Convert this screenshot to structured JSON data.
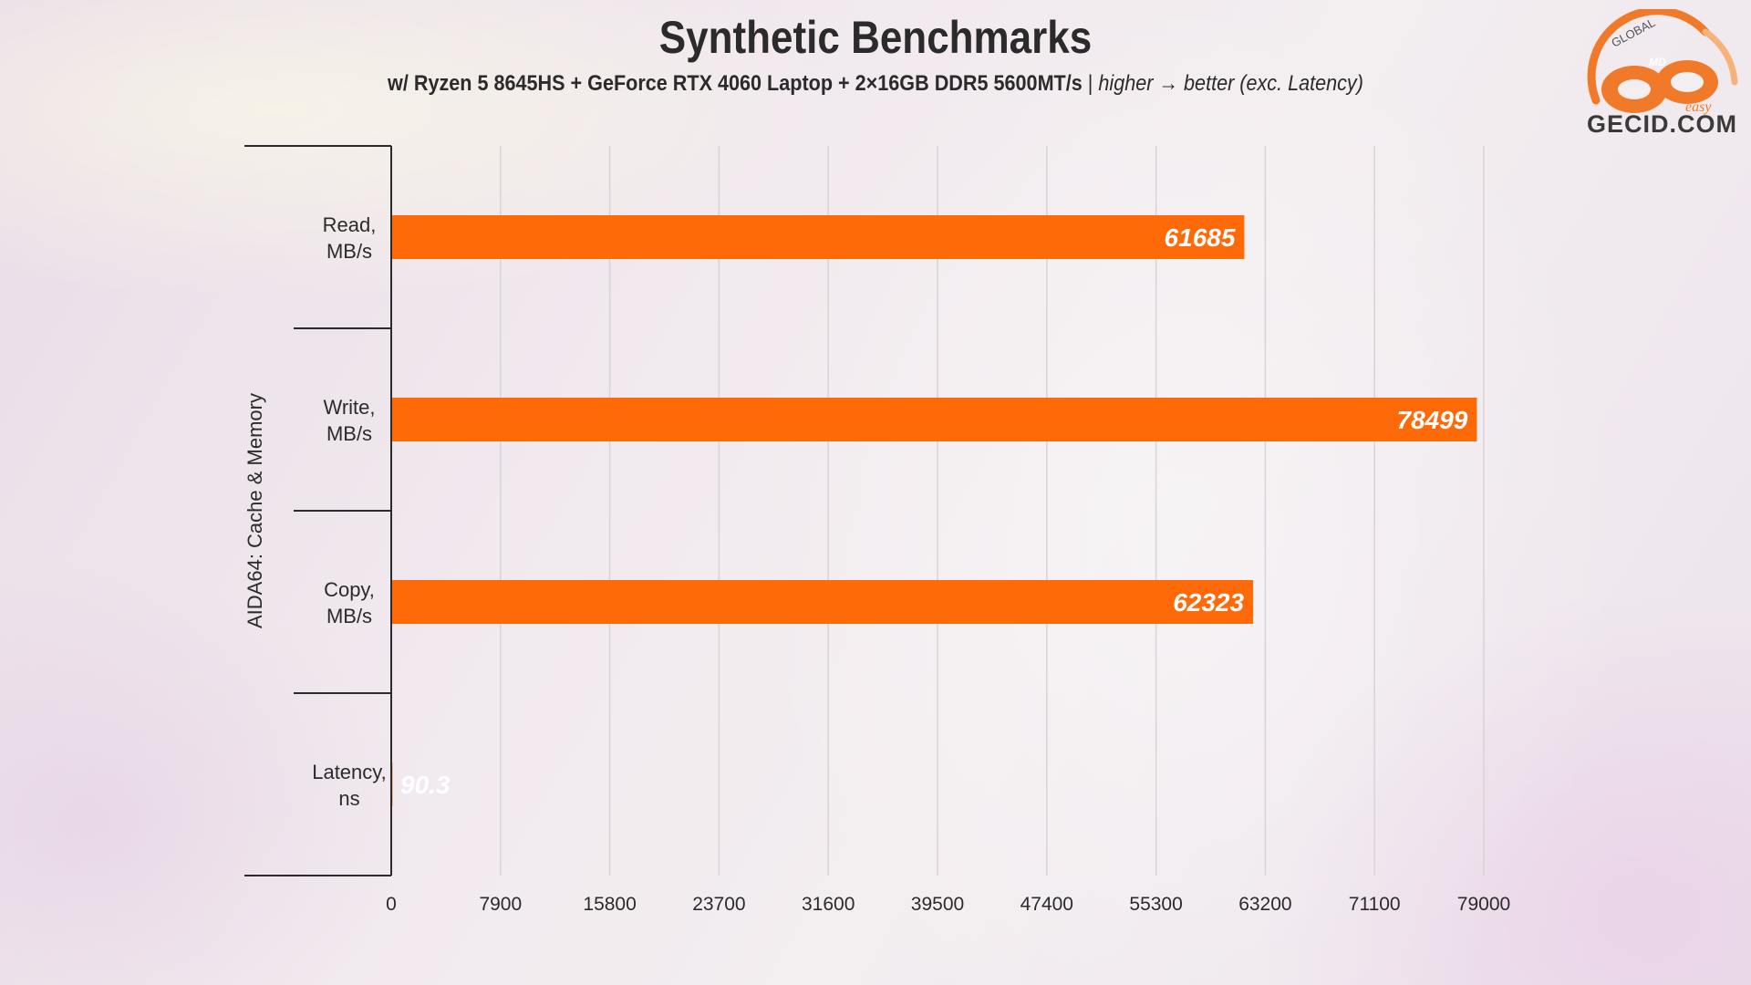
{
  "header": {
    "title": "Synthetic Benchmarks",
    "subtitle_bold": "w/ Ryzen 5 8645HS + GeForce RTX 4060 Laptop + 2×16GB DDR5 5600MT/s",
    "subtitle_sep": " | ",
    "subtitle_italic": "higher → better (exc. Latency)"
  },
  "logo": {
    "site": "GECID.COM",
    "ring_text": "GLOBAL",
    "badge_text": "MD",
    "script_text": "easy",
    "accent_color": "#f07a2a"
  },
  "chart_data": {
    "type": "bar",
    "orientation": "horizontal",
    "group_label": "AIDA64: Cache & Memory",
    "categories": [
      [
        "Read,",
        "MB/s"
      ],
      [
        "Write,",
        "MB/s"
      ],
      [
        "Copy,",
        "MB/s"
      ],
      [
        "Latency,",
        "ns"
      ]
    ],
    "values": [
      61685,
      78499,
      62323,
      90.3
    ],
    "value_labels": [
      "61685",
      "78499",
      "62323",
      "90.3"
    ],
    "xlim": [
      0,
      79000
    ],
    "xticks": [
      0,
      7900,
      15800,
      23700,
      31600,
      39500,
      47400,
      55300,
      63200,
      71100,
      79000
    ],
    "grid": true,
    "bar_color": "#ff6a08",
    "label_color": "#ffffff"
  }
}
